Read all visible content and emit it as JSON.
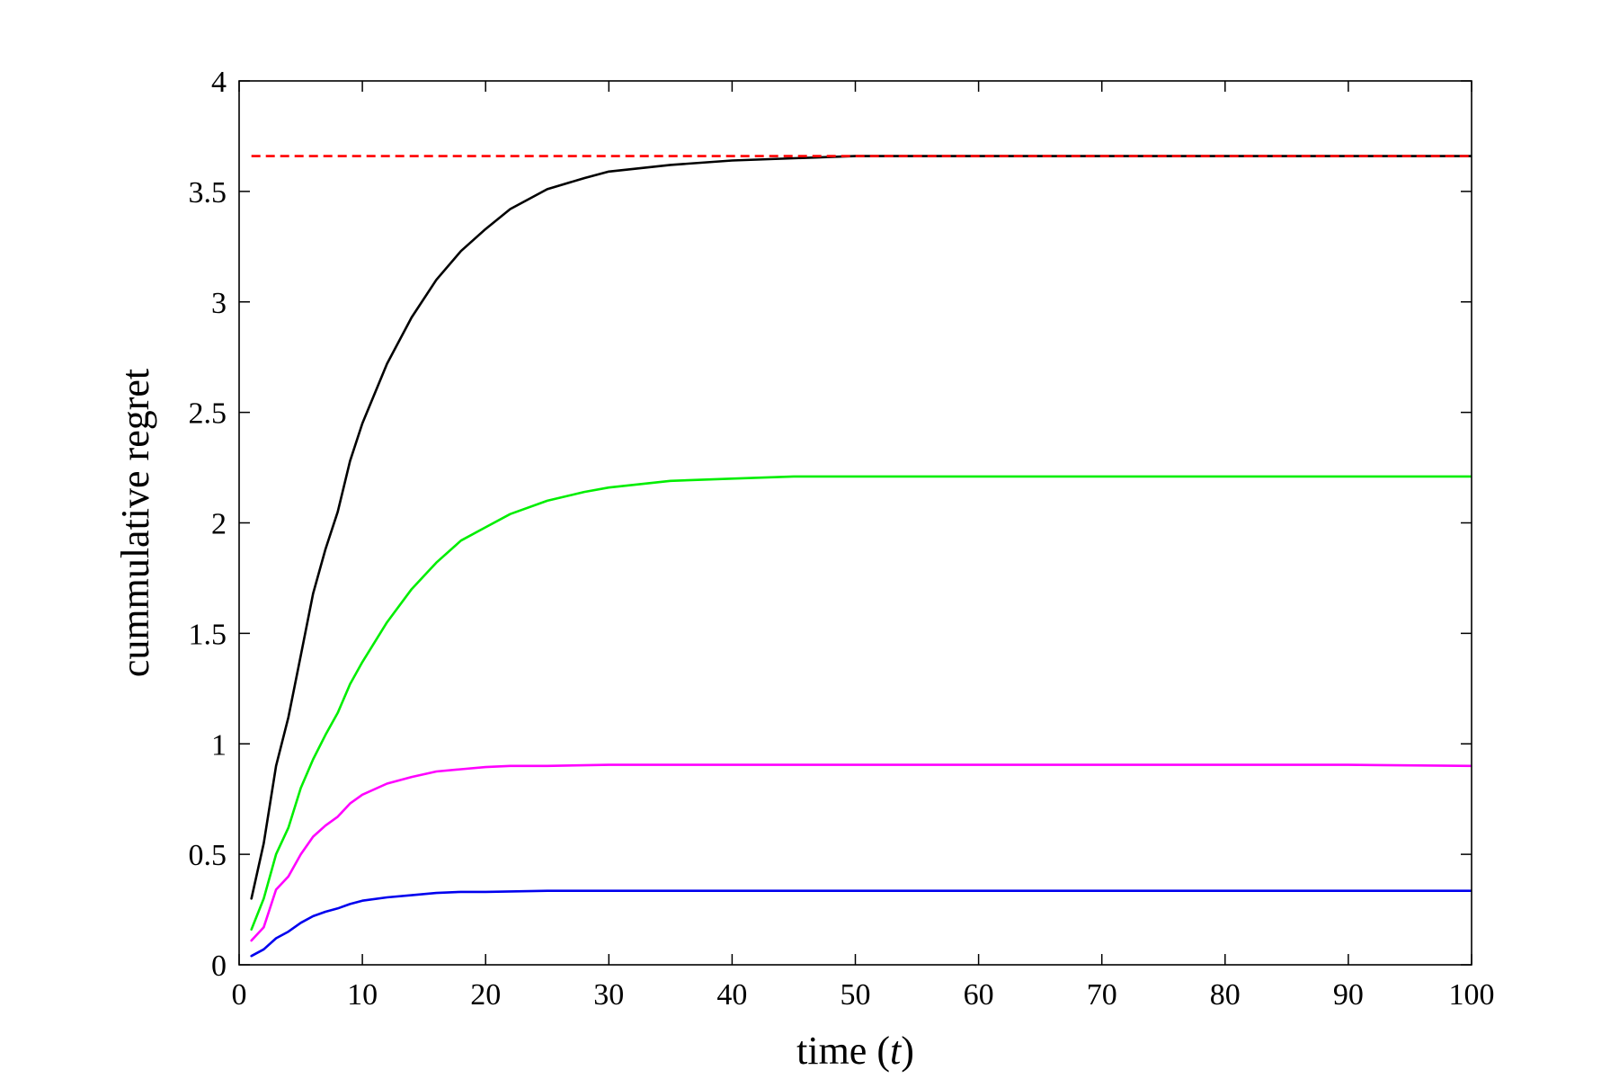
{
  "chart_data": {
    "type": "line",
    "title": "",
    "xlabel": {
      "prefix": "time (",
      "var": "t",
      "suffix": ")"
    },
    "ylabel": "cummulative regret",
    "xlim": [
      0,
      100
    ],
    "ylim": [
      0,
      4
    ],
    "xticks": [
      0,
      10,
      20,
      30,
      40,
      50,
      60,
      70,
      80,
      90,
      100
    ],
    "yticks": [
      0,
      0.5,
      1,
      1.5,
      2,
      2.5,
      3,
      3.5,
      4
    ],
    "xtick_labels": [
      "0",
      "10",
      "20",
      "30",
      "40",
      "50",
      "60",
      "70",
      "80",
      "90",
      "100"
    ],
    "ytick_labels": [
      "0",
      "0.5",
      "1",
      "1.5",
      "2",
      "2.5",
      "3",
      "3.5",
      "4"
    ],
    "grid": false,
    "legend": "none",
    "series": [
      {
        "color": "#000000",
        "style": "solid",
        "x": [
          1,
          2,
          3,
          4,
          5,
          6,
          7,
          8,
          9,
          10,
          12,
          14,
          16,
          18,
          20,
          22,
          25,
          28,
          30,
          35,
          40,
          45,
          50,
          60,
          70,
          80,
          90,
          100
        ],
        "y": [
          0.3,
          0.55,
          0.9,
          1.12,
          1.4,
          1.68,
          1.88,
          2.05,
          2.28,
          2.45,
          2.72,
          2.93,
          3.1,
          3.23,
          3.33,
          3.42,
          3.51,
          3.56,
          3.59,
          3.62,
          3.64,
          3.65,
          3.66,
          3.66,
          3.66,
          3.66,
          3.66,
          3.66
        ]
      },
      {
        "color": "#00ee00",
        "style": "solid",
        "x": [
          1,
          2,
          3,
          4,
          5,
          6,
          7,
          8,
          9,
          10,
          12,
          14,
          16,
          18,
          20,
          22,
          25,
          28,
          30,
          35,
          40,
          45,
          50,
          60,
          70,
          80,
          90,
          100
        ],
        "y": [
          0.16,
          0.3,
          0.5,
          0.62,
          0.8,
          0.93,
          1.04,
          1.14,
          1.27,
          1.37,
          1.55,
          1.7,
          1.82,
          1.92,
          1.98,
          2.04,
          2.1,
          2.14,
          2.16,
          2.19,
          2.2,
          2.21,
          2.21,
          2.21,
          2.21,
          2.21,
          2.21,
          2.21
        ]
      },
      {
        "color": "#ff00ff",
        "style": "solid",
        "x": [
          1,
          2,
          3,
          4,
          5,
          6,
          7,
          8,
          9,
          10,
          12,
          14,
          16,
          18,
          20,
          22,
          25,
          30,
          35,
          40,
          50,
          60,
          70,
          80,
          90,
          100
        ],
        "y": [
          0.11,
          0.17,
          0.34,
          0.4,
          0.5,
          0.58,
          0.63,
          0.67,
          0.73,
          0.77,
          0.82,
          0.85,
          0.875,
          0.885,
          0.895,
          0.9,
          0.9,
          0.905,
          0.905,
          0.905,
          0.905,
          0.905,
          0.905,
          0.905,
          0.905,
          0.9
        ]
      },
      {
        "color": "#0000ee",
        "style": "solid",
        "x": [
          1,
          2,
          3,
          4,
          5,
          6,
          7,
          8,
          9,
          10,
          12,
          14,
          16,
          18,
          20,
          25,
          30,
          40,
          50,
          60,
          70,
          80,
          90,
          100
        ],
        "y": [
          0.04,
          0.07,
          0.12,
          0.15,
          0.19,
          0.22,
          0.24,
          0.255,
          0.275,
          0.29,
          0.305,
          0.315,
          0.325,
          0.33,
          0.33,
          0.335,
          0.335,
          0.335,
          0.335,
          0.335,
          0.335,
          0.335,
          0.335,
          0.335
        ]
      },
      {
        "color": "#ff0000",
        "style": "dashed",
        "x": [
          1,
          100
        ],
        "y": [
          3.66,
          3.66
        ]
      }
    ]
  }
}
